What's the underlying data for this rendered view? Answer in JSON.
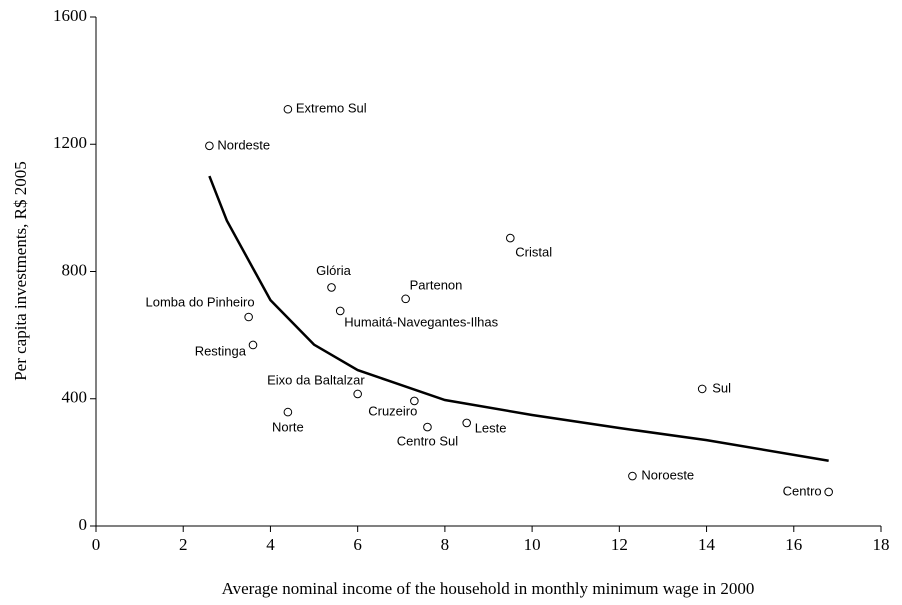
{
  "chart_data": {
    "type": "scatter",
    "x_label": "Average nominal income of the household in monthly minimum wage in 2000",
    "y_label": "Per capita investments, R$ 2005",
    "xlim": [
      0,
      18
    ],
    "xticks": [
      0,
      2,
      4,
      6,
      8,
      10,
      12,
      14,
      16,
      18
    ],
    "ylim": [
      0,
      1600
    ],
    "yticks": [
      0,
      400,
      800,
      1200,
      1600
    ],
    "series": [
      {
        "labels": [
          "Extremo Sul",
          "Nordeste",
          "Cristal",
          "Glória",
          "Partenon",
          "Humaitá-Navegantes-Ilhas",
          "Lomba do Pinheiro",
          "Restinga",
          "Sul",
          "Eixo da Baltalzar",
          "Cruzeiro",
          "Norte",
          "Leste",
          "Centro Sul",
          "Noroeste",
          "Centro"
        ],
        "x": [
          4.4,
          2.6,
          9.5,
          5.4,
          7.1,
          5.6,
          3.5,
          3.6,
          13.9,
          6.0,
          7.3,
          4.4,
          8.5,
          7.6,
          12.3,
          16.8
        ],
        "values": [
          1310,
          1195,
          905,
          750,
          714,
          676,
          657,
          569,
          431,
          415,
          393,
          358,
          324,
          311,
          157,
          107
        ],
        "color": "#000000"
      }
    ],
    "fit": {
      "x": [
        2.6,
        3,
        4,
        5,
        6,
        8,
        10,
        12,
        14,
        16.8
      ],
      "values": [
        1100,
        960,
        710,
        570,
        490,
        396,
        349,
        308,
        270,
        205
      ],
      "color": "#000000"
    }
  }
}
